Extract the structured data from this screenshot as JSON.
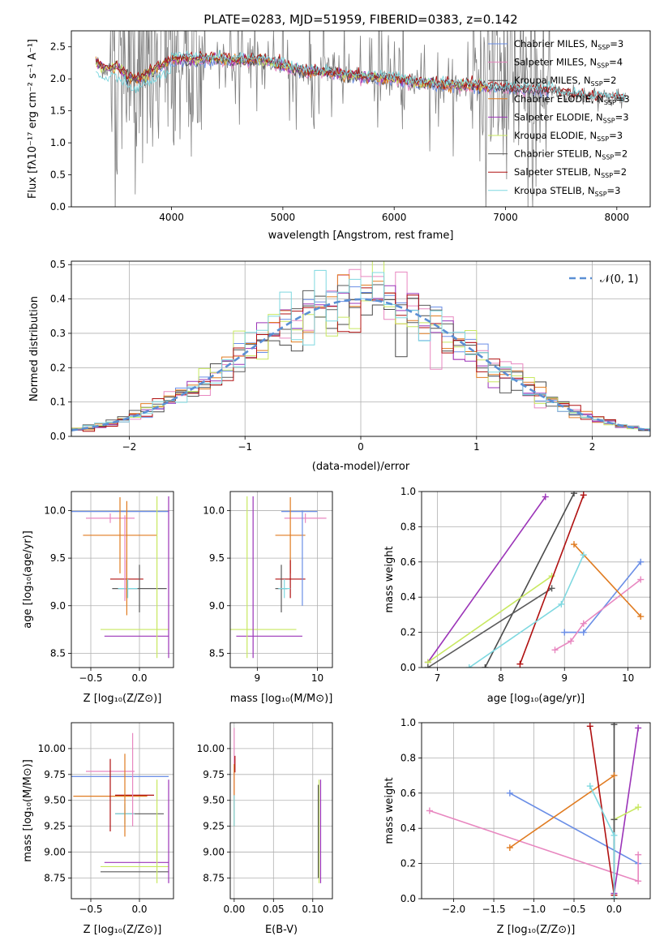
{
  "figure_title": "PLATE=0283, MJD=51959, FIBERID=0383, z=0.142",
  "colors": {
    "chabrier_miles": "#6a8ee6",
    "salpeter_miles": "#e887c0",
    "kroupa_miles": "#4a4a4a",
    "chabrier_elodie": "#e07b20",
    "salpeter_elodie": "#9b34b8",
    "kroupa_elodie": "#c8e860",
    "chabrier_stelib": "#5a5a5a",
    "salpeter_stelib": "#b01010",
    "kroupa_stelib": "#7ed8e0",
    "data_gray": "#808080"
  },
  "chart_data": [
    {
      "id": "spectrum",
      "type": "line",
      "xlabel": "wavelength [Angstrom, rest frame]",
      "ylabel": "Flux [f_λ 10^-17 erg cm^-2 s^-1 A^-1]",
      "xlim": [
        3100,
        8300
      ],
      "ylim": [
        0,
        2.75
      ],
      "xticks": [
        4000,
        5000,
        6000,
        7000,
        8000
      ],
      "yticks": [
        0.0,
        0.5,
        1.0,
        1.5,
        2.0,
        2.5
      ],
      "grid": false,
      "legend_position": "upper-right",
      "legend": [
        {
          "label": "Chabrier MILES, N",
          "sub": "SSP",
          "suffix": "=3",
          "color_key": "chabrier_miles"
        },
        {
          "label": "Salpeter MILES, N",
          "sub": "SSP",
          "suffix": "=4",
          "color_key": "salpeter_miles"
        },
        {
          "label": "Kroupa MILES, N",
          "sub": "SSP",
          "suffix": "=2",
          "color_key": "kroupa_miles"
        },
        {
          "label": "Chabrier ELODIE, N",
          "sub": "SSP",
          "suffix": "=3",
          "color_key": "chabrier_elodie"
        },
        {
          "label": "Salpeter ELODIE, N",
          "sub": "SSP",
          "suffix": "=3",
          "color_key": "salpeter_elodie"
        },
        {
          "label": "Kroupa ELODIE, N",
          "sub": "SSP",
          "suffix": "=3",
          "color_key": "kroupa_elodie"
        },
        {
          "label": "Chabrier STELIB, N",
          "sub": "SSP",
          "suffix": "=2",
          "color_key": "chabrier_stelib"
        },
        {
          "label": "Salpeter STELIB, N",
          "sub": "SSP",
          "suffix": "=2",
          "color_key": "salpeter_stelib"
        },
        {
          "label": "Kroupa STELIB, N",
          "sub": "SSP",
          "suffix": "=3",
          "color_key": "kroupa_stelib"
        }
      ],
      "continuum": [
        [
          3320,
          2.25
        ],
        [
          3400,
          2.15
        ],
        [
          3500,
          2.2
        ],
        [
          3600,
          2.05
        ],
        [
          3700,
          2.0
        ],
        [
          3800,
          2.1
        ],
        [
          3900,
          2.2
        ],
        [
          4000,
          2.3
        ],
        [
          4100,
          2.32
        ],
        [
          4200,
          2.3
        ],
        [
          4400,
          2.32
        ],
        [
          4600,
          2.28
        ],
        [
          4800,
          2.3
        ],
        [
          4900,
          2.25
        ],
        [
          5000,
          2.2
        ],
        [
          5200,
          2.12
        ],
        [
          5400,
          2.1
        ],
        [
          5600,
          2.05
        ],
        [
          5800,
          2.02
        ],
        [
          6000,
          2.0
        ],
        [
          6200,
          1.95
        ],
        [
          6400,
          1.92
        ],
        [
          6600,
          1.9
        ],
        [
          6800,
          1.88
        ],
        [
          7000,
          1.86
        ],
        [
          7200,
          1.84
        ],
        [
          7400,
          1.82
        ],
        [
          7600,
          1.75
        ],
        [
          7800,
          1.72
        ],
        [
          8000,
          1.7
        ],
        [
          8080,
          1.68
        ]
      ]
    },
    {
      "id": "residuals",
      "type": "step",
      "xlabel": "(data-model)/error",
      "ylabel": "Normed distribution",
      "xlim": [
        -2.5,
        2.5
      ],
      "ylim": [
        0,
        0.51
      ],
      "xticks": [
        -2,
        -1,
        0,
        1,
        2
      ],
      "yticks": [
        0.0,
        0.1,
        0.2,
        0.3,
        0.4,
        0.5
      ],
      "grid": true,
      "legend_position": "upper-right",
      "legend": [
        {
          "label": "𝒩(0, 1)",
          "color": "#5b8fd4",
          "style": "dashed"
        }
      ],
      "bin_width": 0.1,
      "bin_start": -2.5
    },
    {
      "id": "age_vs_Z",
      "type": "errorbar",
      "xlabel": "Z [log10(Z/Z⊙)]",
      "ylabel": "age  [log10(age/yr)]",
      "xlim": [
        -0.7,
        0.35
      ],
      "ylim": [
        8.35,
        10.2
      ],
      "xticks": [
        -0.5,
        0.0
      ],
      "yticks": [
        8.5,
        9.0,
        9.5,
        10.0
      ],
      "grid": true,
      "points": [
        {
          "color_key": "chabrier_miles",
          "x": -0.2,
          "y": 9.99,
          "xerr": 0.5,
          "yerr": 0.0
        },
        {
          "color_key": "salpeter_miles",
          "x": -0.3,
          "y": 9.92,
          "xerr": 0.25,
          "yerr": 0.05
        },
        {
          "color_key": "chabrier_elodie",
          "x": -0.2,
          "y": 9.74,
          "xerr": 0.38,
          "yerr": 0.4
        },
        {
          "color_key": "salpeter_stelib",
          "x": -0.13,
          "y": 9.28,
          "xerr": 0.17,
          "yerr": 0.2
        },
        {
          "color_key": "chabrier_stelib",
          "x": 0.0,
          "y": 9.18,
          "xerr": 0.28,
          "yerr": 0.25
        },
        {
          "color_key": "kroupa_stelib",
          "x": -0.12,
          "y": 9.18,
          "xerr": 0.1,
          "yerr": 0.1
        },
        {
          "color_key": "kroupa_elodie",
          "x": -0.05,
          "y": 8.75,
          "xerr": 0.35,
          "yerr": 0.0
        },
        {
          "color_key": "salpeter_elodie",
          "x": -0.03,
          "y": 8.68,
          "xerr": 0.33,
          "yerr": 0.0
        },
        {
          "color_key": "salpeter_elodie",
          "x": 0.3,
          "y": 9.3,
          "xerr": 0.0,
          "yerr": 0.85
        },
        {
          "color_key": "kroupa_elodie",
          "x": 0.18,
          "y": 9.3,
          "xerr": 0.0,
          "yerr": 0.85
        },
        {
          "color_key": "salpeter_miles",
          "x": -0.15,
          "y": 9.5,
          "xerr": 0.0,
          "yerr": 0.45
        },
        {
          "color_key": "chabrier_elodie",
          "x": -0.13,
          "y": 9.5,
          "xerr": 0.0,
          "yerr": 0.6
        }
      ]
    },
    {
      "id": "age_vs_mass",
      "type": "errorbar",
      "xlabel": "mass [log10(M/M⊙)]",
      "ylabel": "",
      "xlim": [
        8.55,
        10.25
      ],
      "ylim": [
        8.35,
        10.2
      ],
      "xticks": [
        9,
        10
      ],
      "yticks": [
        8.5,
        9.0,
        9.5,
        10.0
      ],
      "grid": true,
      "points": [
        {
          "color_key": "chabrier_miles",
          "x": 9.7,
          "y": 9.99,
          "xerr": 0.3,
          "yerr": 0.0
        },
        {
          "color_key": "salpeter_miles",
          "x": 9.8,
          "y": 9.92,
          "xerr": 0.35,
          "yerr": 0.05
        },
        {
          "color_key": "chabrier_elodie",
          "x": 9.55,
          "y": 9.74,
          "xerr": 0.25,
          "yerr": 0.4
        },
        {
          "color_key": "salpeter_stelib",
          "x": 9.55,
          "y": 9.28,
          "xerr": 0.25,
          "yerr": 0.2
        },
        {
          "color_key": "chabrier_stelib",
          "x": 9.4,
          "y": 9.18,
          "xerr": 0.1,
          "yerr": 0.25
        },
        {
          "color_key": "kroupa_stelib",
          "x": 9.45,
          "y": 9.18,
          "xerr": 0.1,
          "yerr": 0.1
        },
        {
          "color_key": "kroupa_elodie",
          "x": 9.1,
          "y": 8.75,
          "xerr": 0.55,
          "yerr": 0.0
        },
        {
          "color_key": "salpeter_elodie",
          "x": 9.2,
          "y": 8.68,
          "xerr": 0.55,
          "yerr": 0.0
        },
        {
          "color_key": "salpeter_elodie",
          "x": 8.93,
          "y": 9.3,
          "xerr": 0.0,
          "yerr": 0.85
        },
        {
          "color_key": "kroupa_elodie",
          "x": 8.83,
          "y": 9.3,
          "xerr": 0.0,
          "yerr": 0.85
        },
        {
          "color_key": "chabrier_miles",
          "x": 9.75,
          "y": 9.5,
          "xerr": 0.0,
          "yerr": 0.5
        }
      ]
    },
    {
      "id": "weight_vs_age",
      "type": "line",
      "xlabel": "age  [log10(age/yr)]",
      "ylabel": "mass weight",
      "xlim": [
        6.75,
        10.35
      ],
      "ylim": [
        0,
        1.0
      ],
      "xticks": [
        7,
        8,
        9,
        10
      ],
      "yticks": [
        0.0,
        0.2,
        0.4,
        0.6,
        0.8,
        1.0
      ],
      "grid": true,
      "series": [
        {
          "color_key": "chabrier_miles",
          "x": [
            9.0,
            9.3,
            10.2
          ],
          "y": [
            0.2,
            0.2,
            0.6
          ]
        },
        {
          "color_key": "salpeter_miles",
          "x": [
            8.85,
            9.1,
            9.3,
            10.2
          ],
          "y": [
            0.1,
            0.15,
            0.25,
            0.5
          ]
        },
        {
          "color_key": "kroupa_miles",
          "x": [
            7.75,
            9.15
          ],
          "y": [
            0.0,
            0.99
          ]
        },
        {
          "color_key": "chabrier_elodie",
          "x": [
            9.15,
            10.2
          ],
          "y": [
            0.7,
            0.29
          ]
        },
        {
          "color_key": "salpeter_elodie",
          "x": [
            6.85,
            8.7
          ],
          "y": [
            0.03,
            0.97
          ]
        },
        {
          "color_key": "kroupa_elodie",
          "x": [
            6.85,
            8.8
          ],
          "y": [
            0.03,
            0.52
          ]
        },
        {
          "color_key": "chabrier_stelib",
          "x": [
            6.85,
            8.8
          ],
          "y": [
            0.0,
            0.45
          ]
        },
        {
          "color_key": "salpeter_stelib",
          "x": [
            8.3,
            9.3
          ],
          "y": [
            0.02,
            0.98
          ]
        },
        {
          "color_key": "kroupa_stelib",
          "x": [
            7.5,
            8.95,
            9.3
          ],
          "y": [
            0.0,
            0.36,
            0.64
          ]
        }
      ]
    },
    {
      "id": "mass_vs_Z",
      "type": "errorbar",
      "xlabel": "Z [log10(Z/Z⊙)]",
      "ylabel": "mass [log10(M/M⊙)]",
      "xlim": [
        -0.7,
        0.35
      ],
      "ylim": [
        8.55,
        10.25
      ],
      "xticks": [
        -0.5,
        0.0
      ],
      "yticks": [
        8.75,
        9.0,
        9.25,
        9.5,
        9.75,
        10.0
      ],
      "grid": true,
      "points": [
        {
          "color_key": "chabrier_miles",
          "x": -0.2,
          "y": 9.73,
          "xerr": 0.5,
          "yerr": 0.0
        },
        {
          "color_key": "salpeter_miles",
          "x": -0.3,
          "y": 9.78,
          "xerr": 0.25,
          "yerr": 0.0
        },
        {
          "color_key": "chabrier_elodie",
          "x": -0.3,
          "y": 9.54,
          "xerr": 0.38,
          "yerr": 0.0
        },
        {
          "color_key": "salpeter_stelib",
          "x": -0.3,
          "y": 9.55,
          "xerr": 0.0,
          "yerr": 0.35
        },
        {
          "color_key": "salpeter_stelib",
          "x": -0.05,
          "y": 9.55,
          "xerr": 0.2,
          "yerr": 0.0
        },
        {
          "color_key": "chabrier_stelib",
          "x": 0.0,
          "y": 9.37,
          "xerr": 0.25,
          "yerr": 0.0
        },
        {
          "color_key": "kroupa_stelib",
          "x": -0.15,
          "y": 9.37,
          "xerr": 0.1,
          "yerr": 0.1
        },
        {
          "color_key": "salpeter_elodie",
          "x": -0.03,
          "y": 8.9,
          "xerr": 0.33,
          "yerr": 0.0
        },
        {
          "color_key": "kroupa_elodie",
          "x": -0.05,
          "y": 8.86,
          "xerr": 0.35,
          "yerr": 0.0
        },
        {
          "color_key": "chabrier_stelib",
          "x": -0.05,
          "y": 8.81,
          "xerr": 0.35,
          "yerr": 0.0
        },
        {
          "color_key": "salpeter_elodie",
          "x": 0.3,
          "y": 9.2,
          "xerr": 0.0,
          "yerr": 0.5
        },
        {
          "color_key": "kroupa_elodie",
          "x": 0.18,
          "y": 9.2,
          "xerr": 0.0,
          "yerr": 0.5
        },
        {
          "color_key": "salpeter_miles",
          "x": -0.07,
          "y": 9.7,
          "xerr": 0.0,
          "yerr": 0.45
        },
        {
          "color_key": "chabrier_elodie",
          "x": -0.15,
          "y": 9.55,
          "xerr": 0.0,
          "yerr": 0.4
        }
      ]
    },
    {
      "id": "mass_vs_ebv",
      "type": "errorbar",
      "xlabel": "E(B-V)",
      "ylabel": "",
      "xlim": [
        -0.005,
        0.125
      ],
      "ylim": [
        8.55,
        10.25
      ],
      "xticks": [
        0.0,
        0.05,
        0.1
      ],
      "yticks": [
        8.75,
        9.0,
        9.25,
        9.5,
        9.75,
        10.0
      ],
      "grid": true,
      "points": [
        {
          "color_key": "salpeter_miles",
          "x": 0.0,
          "y": 9.8,
          "xerr": 0.0,
          "yerr": 0.4
        },
        {
          "color_key": "chabrier_elodie",
          "x": 0.0,
          "y": 9.55,
          "xerr": 0.0,
          "yerr": 0.3
        },
        {
          "color_key": "kroupa_stelib",
          "x": 0.0,
          "y": 9.4,
          "xerr": 0.0,
          "yerr": 0.15
        },
        {
          "color_key": "salpeter_stelib",
          "x": 0.001,
          "y": 9.85,
          "xerr": 0.0,
          "yerr": 0.08
        },
        {
          "color_key": "kroupa_elodie",
          "x": 0.108,
          "y": 9.2,
          "xerr": 0.0,
          "yerr": 0.5
        },
        {
          "color_key": "salpeter_elodie",
          "x": 0.11,
          "y": 9.2,
          "xerr": 0.0,
          "yerr": 0.5
        },
        {
          "color_key": "chabrier_stelib",
          "x": 0.107,
          "y": 9.2,
          "xerr": 0.0,
          "yerr": 0.45
        }
      ]
    },
    {
      "id": "weight_vs_Z",
      "type": "line",
      "xlabel": "Z [log10(Z/Z⊙)]",
      "ylabel": "mass weight",
      "xlim": [
        -2.4,
        0.45
      ],
      "ylim": [
        0,
        1.0
      ],
      "xticks": [
        -2.0,
        -1.5,
        -1.0,
        -0.5,
        0.0
      ],
      "yticks": [
        0.0,
        0.2,
        0.4,
        0.6,
        0.8,
        1.0
      ],
      "grid": true,
      "series": [
        {
          "color_key": "chabrier_miles",
          "x": [
            -1.3,
            0.3
          ],
          "y": [
            0.6,
            0.2
          ]
        },
        {
          "color_key": "salpeter_miles",
          "x": [
            -2.3,
            0.3,
            0.3
          ],
          "y": [
            0.5,
            0.1,
            0.25
          ]
        },
        {
          "color_key": "kroupa_miles",
          "x": [
            0.0,
            0.0
          ],
          "y": [
            0.0,
            0.99
          ]
        },
        {
          "color_key": "chabrier_elodie",
          "x": [
            -1.3,
            0.0
          ],
          "y": [
            0.29,
            0.7
          ]
        },
        {
          "color_key": "salpeter_elodie",
          "x": [
            0.0,
            0.3
          ],
          "y": [
            0.03,
            0.97
          ]
        },
        {
          "color_key": "kroupa_elodie",
          "x": [
            0.0,
            0.3
          ],
          "y": [
            0.45,
            0.52
          ]
        },
        {
          "color_key": "chabrier_stelib",
          "x": [
            0.0,
            0.0
          ],
          "y": [
            0.0,
            0.45
          ]
        },
        {
          "color_key": "salpeter_stelib",
          "x": [
            -0.3,
            0.0
          ],
          "y": [
            0.98,
            0.02
          ]
        },
        {
          "color_key": "kroupa_stelib",
          "x": [
            -0.3,
            0.0,
            0.0
          ],
          "y": [
            0.64,
            0.36,
            0.0
          ]
        }
      ]
    }
  ]
}
